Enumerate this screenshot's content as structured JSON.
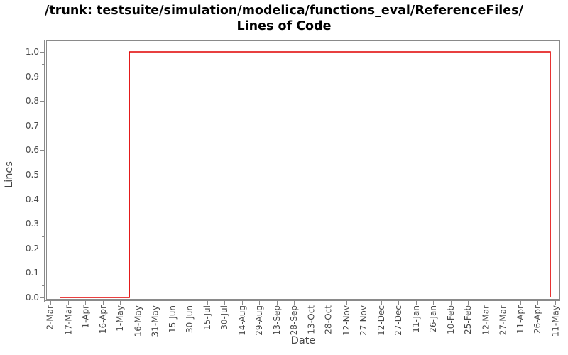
{
  "chart_data": {
    "type": "line",
    "subtype": "step",
    "title_line1": "/trunk: testsuite/simulation/modelica/functions_eval/ReferenceFiles/",
    "title_line2": "Lines of Code",
    "xlabel": "Date",
    "ylabel": "Lines",
    "x_tick_labels": [
      "2-Mar",
      "17-Mar",
      "1-Apr",
      "16-Apr",
      "1-May",
      "16-May",
      "31-May",
      "15-Jun",
      "30-Jun",
      "15-Jul",
      "30-Jul",
      "14-Aug",
      "29-Aug",
      "13-Sep",
      "28-Sep",
      "13-Oct",
      "28-Oct",
      "12-Nov",
      "27-Nov",
      "12-Dec",
      "27-Dec",
      "11-Jan",
      "26-Jan",
      "10-Feb",
      "25-Feb",
      "12-Mar",
      "27-Mar",
      "11-Apr",
      "26-Apr",
      "11-May"
    ],
    "x_tick_interval_days": 15,
    "y_tick_labels": [
      "0.0",
      "0.1",
      "0.2",
      "0.3",
      "0.4",
      "0.5",
      "0.6",
      "0.7",
      "0.8",
      "0.9",
      "1.0"
    ],
    "y_minor_tick_step": 0.05,
    "ylim": [
      0.0,
      1.0
    ],
    "grid": false,
    "legend": false,
    "axis_color": "#8a8a8a",
    "tick_label_color": "#4a4a4a",
    "series": [
      {
        "name": "Lines of Code",
        "color": "#e10000",
        "step_points": [
          {
            "days_from_first_tick": 8,
            "value": 0,
            "approx_date": "10-Mar"
          },
          {
            "days_from_first_tick": 68,
            "value": 0,
            "approx_date": "9-May"
          },
          {
            "days_from_first_tick": 68,
            "value": 1,
            "approx_date": "9-May"
          },
          {
            "days_from_first_tick": 431,
            "value": 1,
            "approx_date": "7-May"
          },
          {
            "days_from_first_tick": 431,
            "value": 0,
            "approx_date": "7-May"
          }
        ]
      }
    ]
  }
}
